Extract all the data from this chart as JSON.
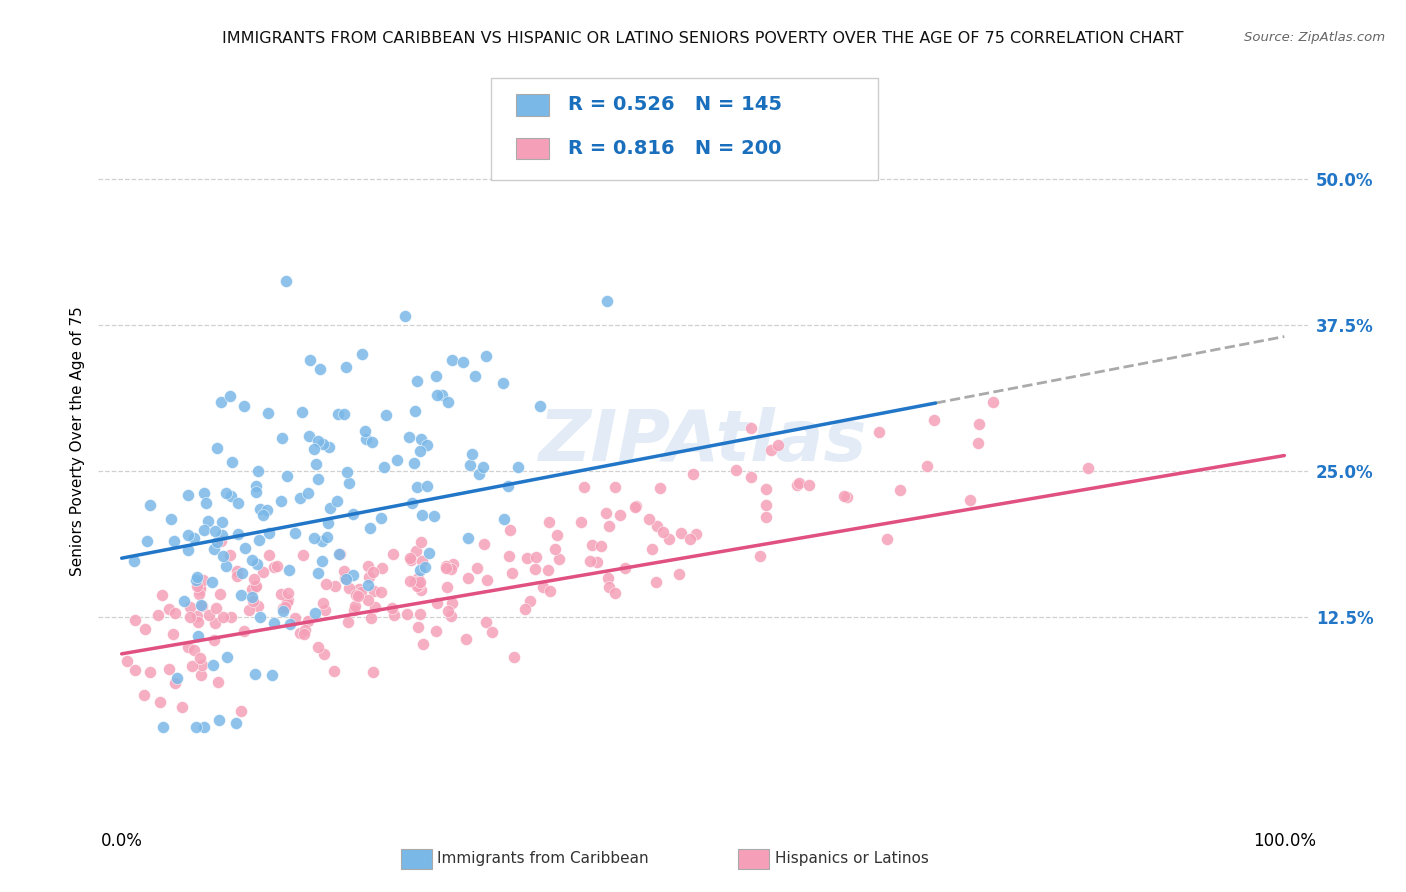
{
  "title": "IMMIGRANTS FROM CARIBBEAN VS HISPANIC OR LATINO SENIORS POVERTY OVER THE AGE OF 75 CORRELATION CHART",
  "source": "Source: ZipAtlas.com",
  "ylabel": "Seniors Poverty Over the Age of 75",
  "xlabel_ticks": [
    "0.0%",
    "100.0%"
  ],
  "ytick_labels": [
    "12.5%",
    "25.0%",
    "37.5%",
    "50.0%"
  ],
  "ytick_values": [
    0.125,
    0.25,
    0.375,
    0.5
  ],
  "xlim": [
    -0.02,
    1.02
  ],
  "ylim": [
    -0.05,
    0.6
  ],
  "blue_R": 0.526,
  "blue_N": 145,
  "pink_R": 0.816,
  "pink_N": 200,
  "blue_color": "#7ab8e8",
  "blue_line_color": "#2176c7",
  "pink_color": "#f5a0b8",
  "pink_line_color": "#e05080",
  "watermark": "ZIPAtlas",
  "title_fontsize": 11.5,
  "source_fontsize": 9.5,
  "legend_color": "#1a6fbd",
  "background_color": "#ffffff",
  "grid_color": "#d0d0d0"
}
